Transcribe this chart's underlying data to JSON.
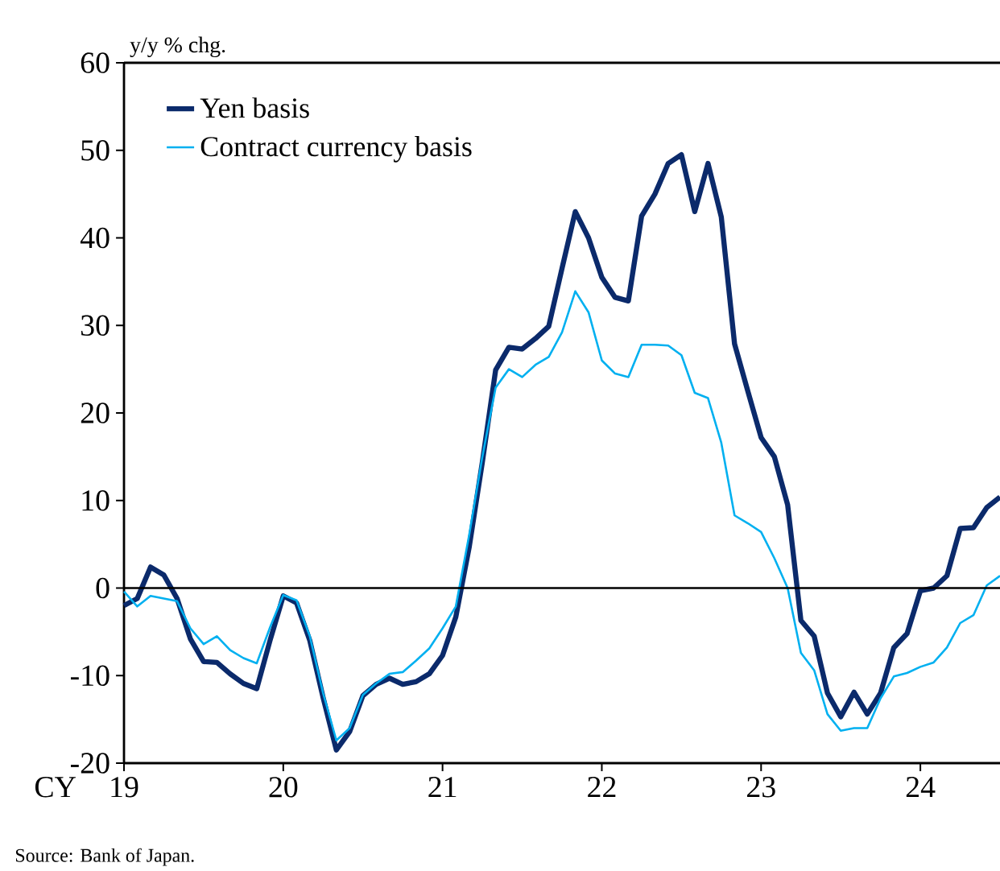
{
  "chart_data": {
    "type": "line",
    "ylabel": "y/y % chg.",
    "xlabel": "CY",
    "x": [
      "2019-01",
      "2019-02",
      "2019-03",
      "2019-04",
      "2019-05",
      "2019-06",
      "2019-07",
      "2019-08",
      "2019-09",
      "2019-10",
      "2019-11",
      "2019-12",
      "2020-01",
      "2020-02",
      "2020-03",
      "2020-04",
      "2020-05",
      "2020-06",
      "2020-07",
      "2020-08",
      "2020-09",
      "2020-10",
      "2020-11",
      "2020-12",
      "2021-01",
      "2021-02",
      "2021-03",
      "2021-04",
      "2021-05",
      "2021-06",
      "2021-07",
      "2021-08",
      "2021-09",
      "2021-10",
      "2021-11",
      "2021-12",
      "2022-01",
      "2022-02",
      "2022-03",
      "2022-04",
      "2022-05",
      "2022-06",
      "2022-07",
      "2022-08",
      "2022-09",
      "2022-10",
      "2022-11",
      "2022-12",
      "2023-01",
      "2023-02",
      "2023-03",
      "2023-04",
      "2023-05",
      "2023-06",
      "2023-07",
      "2023-08",
      "2023-09",
      "2023-10",
      "2023-11",
      "2023-12",
      "2024-01",
      "2024-02",
      "2024-03",
      "2024-04",
      "2024-05",
      "2024-06",
      "2024-07"
    ],
    "series": [
      {
        "name": "Yen basis",
        "color": "#0b2a6b",
        "values": [
          -2,
          -1.2,
          2.4,
          1.5,
          -1.2,
          -5.8,
          -8.4,
          -8.5,
          -9.8,
          -10.9,
          -11.5,
          -6,
          -0.9,
          -1.7,
          -6,
          -12.5,
          -18.5,
          -16.4,
          -12.3,
          -11,
          -10.3,
          -11,
          -10.7,
          -9.8,
          -7.7,
          -3.3,
          4.6,
          14.4,
          24.9,
          27.5,
          27.3,
          28.5,
          29.9,
          36.5,
          43,
          40,
          35.5,
          33.2,
          32.8,
          42.5,
          45,
          48.5,
          49.5,
          43,
          48.5,
          42.4,
          27.9,
          22.5,
          17.2,
          15,
          9.5,
          -3.7,
          -5.5,
          -12,
          -14.7,
          -11.9,
          -14.4,
          -12,
          -6.8,
          -5.2,
          -0.3,
          0,
          1.4,
          6.8,
          6.9,
          9.2,
          10.4
        ]
      },
      {
        "name": "Contract currency basis",
        "color": "#00b0f0",
        "values": [
          -0.4,
          -2.1,
          -0.9,
          -1.2,
          -1.5,
          -4.6,
          -6.4,
          -5.5,
          -7.1,
          -8,
          -8.6,
          -4.5,
          -0.8,
          -1.4,
          -5.5,
          -12,
          -17.4,
          -16,
          -12.2,
          -10.9,
          -9.8,
          -9.6,
          -8.3,
          -6.9,
          -4.6,
          -2.1,
          6,
          15,
          22.9,
          25,
          24.1,
          25.5,
          26.4,
          29.2,
          33.9,
          31.5,
          26,
          24.5,
          24.1,
          27.8,
          27.8,
          27.7,
          26.6,
          22.3,
          21.7,
          16.6,
          8.3,
          7.4,
          6.4,
          3.4,
          0,
          -7.4,
          -9.4,
          -14.4,
          -16.3,
          -16,
          -16,
          -12.6,
          -10.1,
          -9.7,
          -9,
          -8.5,
          -6.8,
          -4,
          -3.1,
          0.3,
          1.4
        ]
      }
    ],
    "xlim": [
      "2019-01",
      "2024-07"
    ],
    "xticks": [
      {
        "value": "2019-01",
        "label": "19"
      },
      {
        "value": "2020-01",
        "label": "20"
      },
      {
        "value": "2021-01",
        "label": "21"
      },
      {
        "value": "2022-01",
        "label": "22"
      },
      {
        "value": "2023-01",
        "label": "23"
      },
      {
        "value": "2024-01",
        "label": "24"
      }
    ],
    "ylim": [
      -20,
      60
    ],
    "yticks": [
      -20,
      -10,
      0,
      10,
      20,
      30,
      40,
      50,
      60
    ],
    "ref_lines": [
      {
        "axis": "y",
        "value": 0,
        "color": "#000000"
      }
    ],
    "legend": "top left",
    "marker": "none",
    "line_style": "solid",
    "annotations": [
      "Source: Bank of Japan."
    ]
  }
}
